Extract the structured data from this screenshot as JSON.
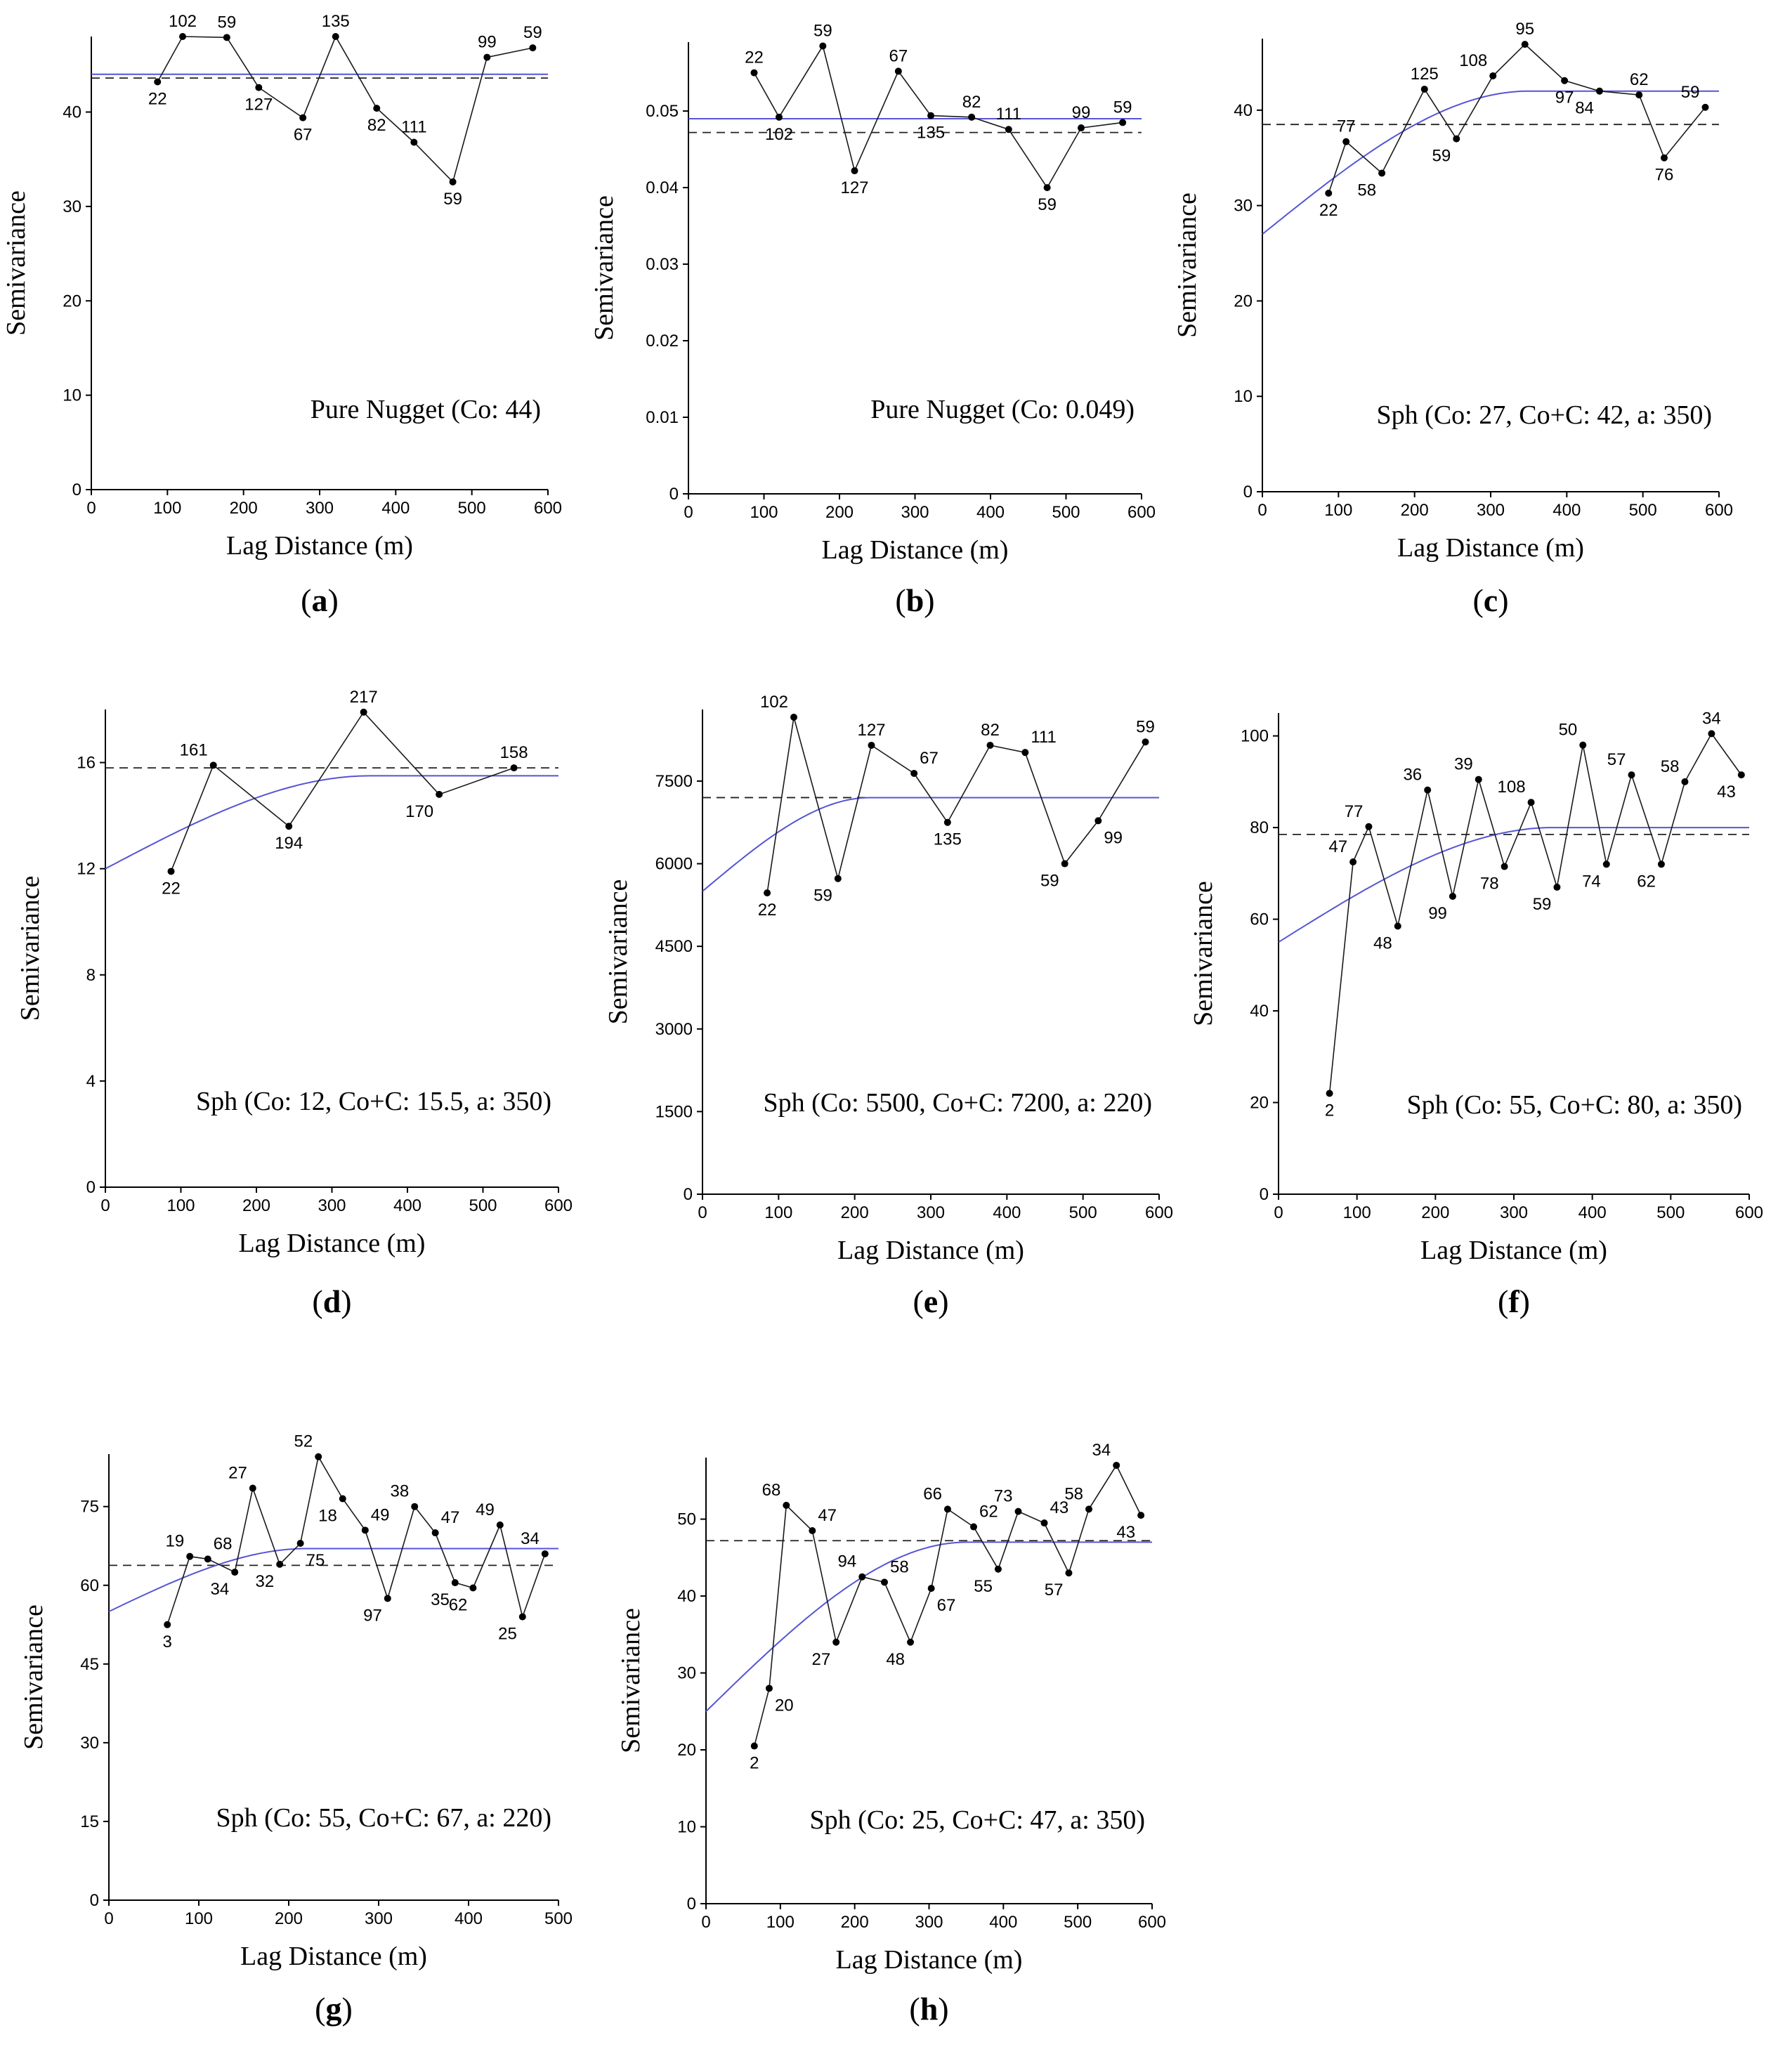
{
  "colors": {
    "model": "#5555d5",
    "data": "#1a1a1a",
    "sill": "#222222"
  },
  "chart_data": [
    {
      "id": "a",
      "type": "line",
      "panel_label": "a",
      "xlabel": "Lag Distance (m)",
      "ylabel": "Semivariance",
      "annotation": "Pure Nugget (Co: 44)",
      "xlim": [
        0,
        600
      ],
      "ylim": [
        0,
        48
      ],
      "xticks": [
        0,
        100,
        200,
        300,
        400,
        500,
        600
      ],
      "yticks": [
        0,
        10,
        20,
        30,
        40
      ],
      "model": {
        "type": "nugget",
        "co": 44
      },
      "sample_variance": 43.6,
      "points": [
        {
          "x": 87,
          "y": 43.2,
          "n": "22",
          "pos": "below"
        },
        {
          "x": 120,
          "y": 48.0,
          "n": "102",
          "pos": "above"
        },
        {
          "x": 178,
          "y": 47.9,
          "n": "59",
          "pos": "above"
        },
        {
          "x": 220,
          "y": 42.6,
          "n": "127",
          "pos": "below"
        },
        {
          "x": 278,
          "y": 39.4,
          "n": "67",
          "pos": "below"
        },
        {
          "x": 321,
          "y": 48.0,
          "n": "135",
          "pos": "above"
        },
        {
          "x": 375,
          "y": 40.4,
          "n": "82",
          "pos": "below"
        },
        {
          "x": 424,
          "y": 36.8,
          "n": "111",
          "pos": "above"
        },
        {
          "x": 475,
          "y": 32.6,
          "n": "59",
          "pos": "below"
        },
        {
          "x": 520,
          "y": 45.8,
          "n": "99",
          "pos": "above"
        },
        {
          "x": 580,
          "y": 46.8,
          "n": "59",
          "pos": "above"
        }
      ]
    },
    {
      "id": "b",
      "type": "line",
      "panel_label": "b",
      "xlabel": "Lag Distance (m)",
      "ylabel": "Semivariance",
      "annotation": "Pure Nugget (Co: 0.049)",
      "xlim": [
        0,
        600
      ],
      "ylim": [
        0,
        0.059
      ],
      "xticks": [
        0,
        100,
        200,
        300,
        400,
        500,
        600
      ],
      "yticks": [
        0,
        0.01,
        0.02,
        0.03,
        0.04,
        0.05
      ],
      "model": {
        "type": "nugget",
        "co": 0.049
      },
      "sample_variance": 0.0472,
      "points": [
        {
          "x": 87,
          "y": 0.055,
          "n": "22",
          "pos": "above"
        },
        {
          "x": 120,
          "y": 0.0492,
          "n": "102",
          "pos": "below"
        },
        {
          "x": 178,
          "y": 0.0585,
          "n": "59",
          "pos": "above"
        },
        {
          "x": 220,
          "y": 0.0422,
          "n": "127",
          "pos": "below"
        },
        {
          "x": 278,
          "y": 0.0552,
          "n": "67",
          "pos": "above"
        },
        {
          "x": 321,
          "y": 0.0494,
          "n": "135",
          "pos": "below"
        },
        {
          "x": 375,
          "y": 0.0492,
          "n": "82",
          "pos": "above"
        },
        {
          "x": 424,
          "y": 0.0476,
          "n": "111",
          "pos": "above"
        },
        {
          "x": 475,
          "y": 0.04,
          "n": "59",
          "pos": "below"
        },
        {
          "x": 520,
          "y": 0.0478,
          "n": "99",
          "pos": "above"
        },
        {
          "x": 575,
          "y": 0.0485,
          "n": "59",
          "pos": "above"
        }
      ]
    },
    {
      "id": "c",
      "type": "line",
      "panel_label": "c",
      "xlabel": "Lag Distance (m)",
      "ylabel": "Semivariance",
      "annotation": "Sph (Co: 27, Co+C: 42, a: 350)",
      "xlim": [
        0,
        600
      ],
      "ylim": [
        0,
        47.5
      ],
      "xticks": [
        0,
        100,
        200,
        300,
        400,
        500,
        600
      ],
      "yticks": [
        0,
        10,
        20,
        30,
        40
      ],
      "model": {
        "type": "spherical",
        "co": 27,
        "sill": 42,
        "range": 350
      },
      "sample_variance": 38.5,
      "points": [
        {
          "x": 87,
          "y": 31.3,
          "n": "22",
          "pos": "below"
        },
        {
          "x": 110,
          "y": 36.7,
          "n": "77",
          "pos": "above"
        },
        {
          "x": 157,
          "y": 33.4,
          "n": "58",
          "pos": "belowleft"
        },
        {
          "x": 213,
          "y": 42.2,
          "n": "125",
          "pos": "above"
        },
        {
          "x": 255,
          "y": 37.0,
          "n": "59",
          "pos": "belowleft"
        },
        {
          "x": 303,
          "y": 43.6,
          "n": "108",
          "pos": "aboveleft"
        },
        {
          "x": 345,
          "y": 46.9,
          "n": "95",
          "pos": "above"
        },
        {
          "x": 397,
          "y": 43.1,
          "n": "97",
          "pos": "below"
        },
        {
          "x": 443,
          "y": 42.0,
          "n": "84",
          "pos": "belowleft"
        },
        {
          "x": 495,
          "y": 41.6,
          "n": "62",
          "pos": "above"
        },
        {
          "x": 528,
          "y": 35.0,
          "n": "76",
          "pos": "below"
        },
        {
          "x": 582,
          "y": 40.3,
          "n": "59",
          "pos": "aboveleft"
        }
      ]
    },
    {
      "id": "d",
      "type": "line",
      "panel_label": "d",
      "xlabel": "Lag Distance (m)",
      "ylabel": "Semivariance",
      "annotation": "Sph (Co: 12, Co+C: 15.5, a: 350)",
      "xlim": [
        0,
        600
      ],
      "ylim": [
        0,
        18
      ],
      "xticks": [
        0,
        100,
        200,
        300,
        400,
        500,
        600
      ],
      "yticks": [
        0,
        4,
        8,
        12,
        16
      ],
      "model": {
        "type": "spherical",
        "co": 12,
        "sill": 15.5,
        "range": 350
      },
      "sample_variance": 15.8,
      "points": [
        {
          "x": 87,
          "y": 11.9,
          "n": "22",
          "pos": "below"
        },
        {
          "x": 143,
          "y": 15.9,
          "n": "161",
          "pos": "aboveleft"
        },
        {
          "x": 243,
          "y": 13.6,
          "n": "194",
          "pos": "below"
        },
        {
          "x": 342,
          "y": 17.9,
          "n": "217",
          "pos": "above"
        },
        {
          "x": 442,
          "y": 14.8,
          "n": "170",
          "pos": "belowleft"
        },
        {
          "x": 541,
          "y": 15.8,
          "n": "158",
          "pos": "above"
        }
      ]
    },
    {
      "id": "e",
      "type": "line",
      "panel_label": "e",
      "xlabel": "Lag Distance (m)",
      "ylabel": "Semivariance",
      "annotation": "Sph (Co: 5500, Co+C: 7200, a: 220)",
      "xlim": [
        0,
        600
      ],
      "ylim": [
        0,
        8800
      ],
      "xticks": [
        0,
        100,
        200,
        300,
        400,
        500,
        600
      ],
      "yticks": [
        0,
        1500,
        3000,
        4500,
        6000,
        7500
      ],
      "model": {
        "type": "spherical",
        "co": 5500,
        "sill": 7200,
        "range": 220
      },
      "sample_variance": 7200,
      "points": [
        {
          "x": 85,
          "y": 5470,
          "n": "22",
          "pos": "below"
        },
        {
          "x": 120,
          "y": 8660,
          "n": "102",
          "pos": "aboveleft"
        },
        {
          "x": 178,
          "y": 5730,
          "n": "59",
          "pos": "belowleft"
        },
        {
          "x": 222,
          "y": 8150,
          "n": "127",
          "pos": "above"
        },
        {
          "x": 278,
          "y": 7640,
          "n": "67",
          "pos": "aboveright"
        },
        {
          "x": 322,
          "y": 6750,
          "n": "135",
          "pos": "below"
        },
        {
          "x": 378,
          "y": 8150,
          "n": "82",
          "pos": "above"
        },
        {
          "x": 424,
          "y": 8020,
          "n": "111",
          "pos": "aboveright"
        },
        {
          "x": 476,
          "y": 6000,
          "n": "59",
          "pos": "belowleft"
        },
        {
          "x": 520,
          "y": 6780,
          "n": "99",
          "pos": "belowright"
        },
        {
          "x": 582,
          "y": 8210,
          "n": "59",
          "pos": "above"
        }
      ]
    },
    {
      "id": "f",
      "type": "line",
      "panel_label": "f",
      "xlabel": "Lag Distance (m)",
      "ylabel": "Semivariance",
      "annotation": "Sph (Co: 55, Co+C: 80, a: 350)",
      "xlim": [
        0,
        600
      ],
      "ylim": [
        0,
        105
      ],
      "xticks": [
        0,
        100,
        200,
        300,
        400,
        500,
        600
      ],
      "yticks": [
        0,
        20,
        40,
        60,
        80,
        100
      ],
      "model": {
        "type": "spherical",
        "co": 55,
        "sill": 80,
        "range": 350
      },
      "sample_variance": 78.5,
      "points": [
        {
          "x": 65,
          "y": 22,
          "n": "2",
          "pos": "below"
        },
        {
          "x": 95,
          "y": 72.5,
          "n": "47",
          "pos": "aboveleft"
        },
        {
          "x": 115,
          "y": 80.2,
          "n": "77",
          "pos": "aboveleft"
        },
        {
          "x": 152,
          "y": 58.5,
          "n": "48",
          "pos": "belowleft"
        },
        {
          "x": 190,
          "y": 88.2,
          "n": "36",
          "pos": "aboveleft"
        },
        {
          "x": 222,
          "y": 65.0,
          "n": "99",
          "pos": "belowleft"
        },
        {
          "x": 255,
          "y": 90.5,
          "n": "39",
          "pos": "aboveleft"
        },
        {
          "x": 288,
          "y": 71.5,
          "n": "78",
          "pos": "belowleft"
        },
        {
          "x": 322,
          "y": 85.5,
          "n": "108",
          "pos": "aboveleft"
        },
        {
          "x": 355,
          "y": 67.0,
          "n": "59",
          "pos": "belowleft"
        },
        {
          "x": 388,
          "y": 98.0,
          "n": "50",
          "pos": "aboveleft"
        },
        {
          "x": 418,
          "y": 72.0,
          "n": "74",
          "pos": "belowleft"
        },
        {
          "x": 450,
          "y": 91.5,
          "n": "57",
          "pos": "aboveleft"
        },
        {
          "x": 488,
          "y": 72.0,
          "n": "62",
          "pos": "belowleft"
        },
        {
          "x": 518,
          "y": 90.0,
          "n": "58",
          "pos": "aboveleft"
        },
        {
          "x": 552,
          "y": 100.5,
          "n": "34",
          "pos": "above"
        },
        {
          "x": 590,
          "y": 91.5,
          "n": "43",
          "pos": "belowleft"
        }
      ]
    },
    {
      "id": "g",
      "type": "line",
      "panel_label": "g",
      "xlabel": "Lag Distance (m)",
      "ylabel": "Semivariance",
      "annotation": "Sph (Co: 55, Co+C: 67, a: 220)",
      "xlim": [
        0,
        500
      ],
      "ylim": [
        0,
        85
      ],
      "xticks": [
        0,
        100,
        200,
        300,
        400,
        500
      ],
      "yticks": [
        0,
        15,
        30,
        45,
        60,
        75
      ],
      "model": {
        "type": "spherical",
        "co": 55,
        "sill": 67,
        "range": 220
      },
      "sample_variance": 63.8,
      "points": [
        {
          "x": 65,
          "y": 52.5,
          "n": "3",
          "pos": "below"
        },
        {
          "x": 90,
          "y": 65.5,
          "n": "19",
          "pos": "aboveleft"
        },
        {
          "x": 110,
          "y": 65.0,
          "n": "68",
          "pos": "aboveright"
        },
        {
          "x": 140,
          "y": 62.5,
          "n": "34",
          "pos": "belowleft"
        },
        {
          "x": 160,
          "y": 78.5,
          "n": "27",
          "pos": "aboveleft"
        },
        {
          "x": 190,
          "y": 64.0,
          "n": "32",
          "pos": "belowleft"
        },
        {
          "x": 213,
          "y": 68.0,
          "n": "75",
          "pos": "belowright"
        },
        {
          "x": 233,
          "y": 84.5,
          "n": "52",
          "pos": "aboveleft"
        },
        {
          "x": 260,
          "y": 76.5,
          "n": "18",
          "pos": "belowleft"
        },
        {
          "x": 285,
          "y": 70.5,
          "n": "49",
          "pos": "aboveright"
        },
        {
          "x": 310,
          "y": 57.5,
          "n": "97",
          "pos": "belowleft"
        },
        {
          "x": 340,
          "y": 75.0,
          "n": "38",
          "pos": "aboveleft"
        },
        {
          "x": 363,
          "y": 70.0,
          "n": "47",
          "pos": "aboveright"
        },
        {
          "x": 385,
          "y": 60.5,
          "n": "35",
          "pos": "belowleft"
        },
        {
          "x": 405,
          "y": 59.5,
          "n": "62",
          "pos": "belowleft"
        },
        {
          "x": 435,
          "y": 71.5,
          "n": "49",
          "pos": "aboveleft"
        },
        {
          "x": 460,
          "y": 54.0,
          "n": "25",
          "pos": "belowleft"
        },
        {
          "x": 485,
          "y": 66.0,
          "n": "34",
          "pos": "aboveleft"
        }
      ]
    },
    {
      "id": "h",
      "type": "line",
      "panel_label": "h",
      "xlabel": "Lag Distance (m)",
      "ylabel": "Semivariance",
      "annotation": "Sph (Co: 25, Co+C: 47, a: 350)",
      "xlim": [
        0,
        600
      ],
      "ylim": [
        0,
        58
      ],
      "xticks": [
        0,
        100,
        200,
        300,
        400,
        500,
        600
      ],
      "yticks": [
        0,
        10,
        20,
        30,
        40,
        50
      ],
      "model": {
        "type": "spherical",
        "co": 25,
        "sill": 47,
        "range": 350
      },
      "sample_variance": 47.2,
      "points": [
        {
          "x": 65,
          "y": 20.5,
          "n": "2",
          "pos": "below"
        },
        {
          "x": 85,
          "y": 28.0,
          "n": "20",
          "pos": "belowright"
        },
        {
          "x": 108,
          "y": 51.8,
          "n": "68",
          "pos": "aboveleft"
        },
        {
          "x": 143,
          "y": 48.5,
          "n": "47",
          "pos": "aboveright"
        },
        {
          "x": 175,
          "y": 34.0,
          "n": "27",
          "pos": "belowleft"
        },
        {
          "x": 210,
          "y": 42.5,
          "n": "94",
          "pos": "aboveleft"
        },
        {
          "x": 240,
          "y": 41.8,
          "n": "58",
          "pos": "aboveright"
        },
        {
          "x": 275,
          "y": 34.0,
          "n": "48",
          "pos": "belowleft"
        },
        {
          "x": 303,
          "y": 41.0,
          "n": "67",
          "pos": "belowright"
        },
        {
          "x": 325,
          "y": 51.3,
          "n": "66",
          "pos": "aboveleft"
        },
        {
          "x": 360,
          "y": 49.0,
          "n": "62",
          "pos": "aboveright"
        },
        {
          "x": 393,
          "y": 43.5,
          "n": "55",
          "pos": "belowleft"
        },
        {
          "x": 420,
          "y": 51.0,
          "n": "73",
          "pos": "aboveleft"
        },
        {
          "x": 455,
          "y": 49.5,
          "n": "43",
          "pos": "aboveright"
        },
        {
          "x": 488,
          "y": 43.0,
          "n": "57",
          "pos": "belowleft"
        },
        {
          "x": 515,
          "y": 51.3,
          "n": "58",
          "pos": "aboveleft"
        },
        {
          "x": 552,
          "y": 57.0,
          "n": "34",
          "pos": "aboveleft"
        },
        {
          "x": 585,
          "y": 50.5,
          "n": "43",
          "pos": "belowleft"
        }
      ]
    }
  ]
}
